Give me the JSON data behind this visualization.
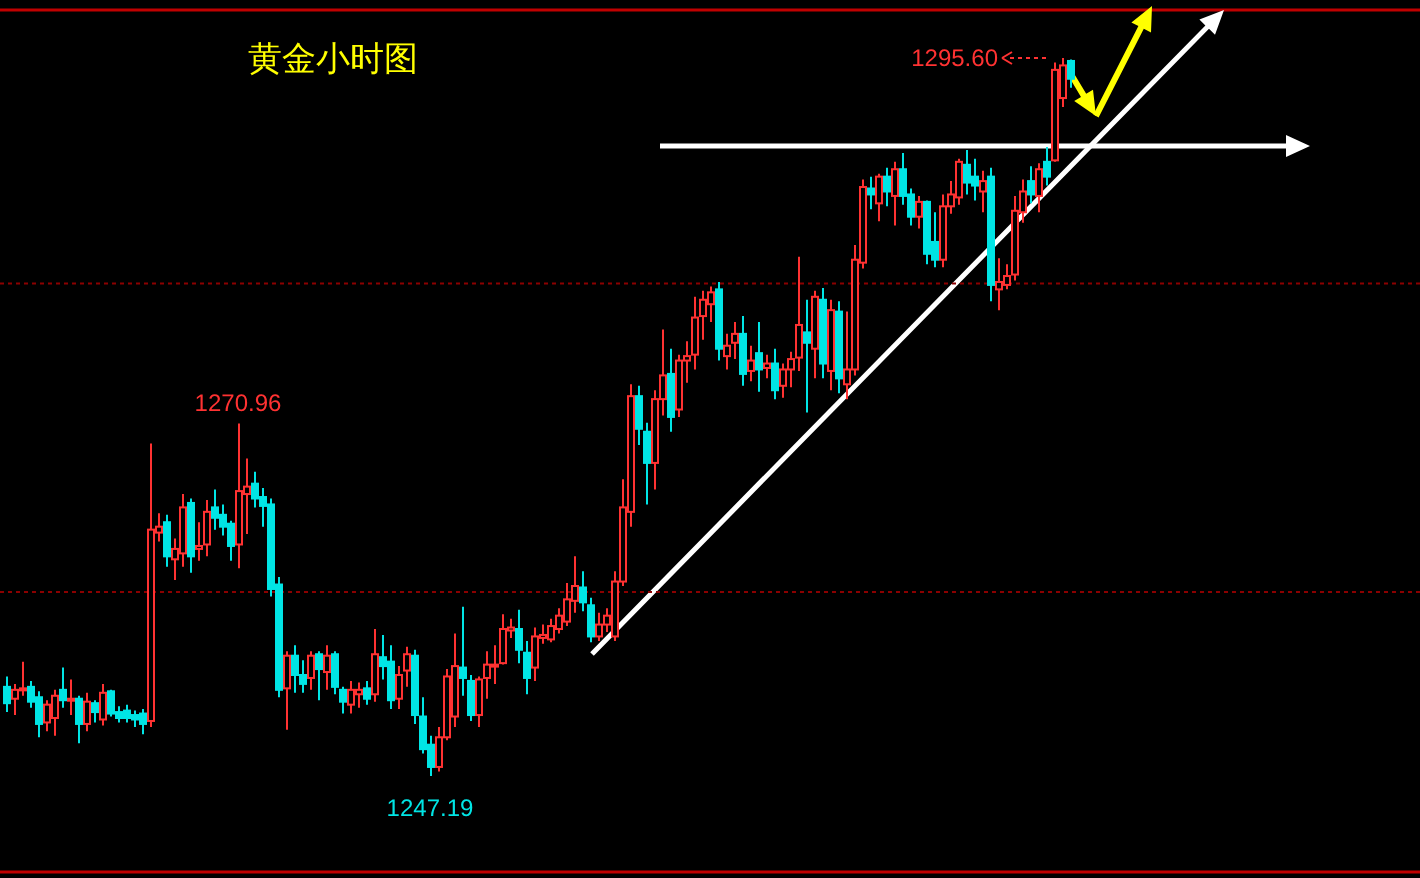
{
  "chart_data": {
    "type": "candlestick",
    "title": "黄金小时图",
    "categories": [
      null,
      null,
      null,
      null,
      null,
      null,
      null,
      null,
      null,
      null,
      null,
      null,
      null,
      null,
      null,
      null,
      null,
      null,
      null,
      null,
      null,
      null,
      null,
      null,
      null,
      null,
      null,
      null,
      null,
      null,
      null,
      null,
      null,
      null,
      null,
      null,
      null,
      null,
      null,
      null,
      null,
      null,
      null,
      null,
      null,
      null,
      null,
      null,
      null,
      null,
      null,
      null,
      null,
      null,
      null,
      null,
      null,
      null,
      null,
      null,
      null,
      null,
      null,
      null,
      null,
      null,
      null,
      null,
      null,
      null,
      null,
      null,
      null,
      null,
      null,
      null,
      null,
      null,
      null,
      null,
      null,
      null,
      null,
      null,
      null,
      null,
      null,
      null,
      null,
      null,
      null,
      null,
      null,
      null,
      null,
      null,
      null,
      null,
      null,
      null,
      null,
      null,
      null,
      null,
      null,
      null,
      null,
      null,
      null,
      null,
      null,
      null,
      null,
      null,
      null,
      null,
      null,
      null,
      null,
      null,
      null,
      null,
      null,
      null,
      null,
      null,
      null,
      null,
      null,
      null,
      null,
      null,
      null,
      null
    ],
    "colors": [
      "#00e5e5",
      "#ff3232",
      "#ff3232",
      "#00e5e5",
      "#00e5e5",
      "#ff3232",
      "#ff3232",
      "#00e5e5",
      "#ff3232",
      "#00e5e5",
      "#ff3232",
      "#00e5e5",
      "#ff3232",
      "#00e5e5",
      "#00e5e5",
      "#00e5e5",
      "#00e5e5",
      "#00e5e5",
      "#ff3232",
      "#ff3232",
      "#00e5e5",
      "#ff3232",
      "#ff3232",
      "#00e5e5",
      "#ff3232",
      "#ff3232",
      "#00e5e5",
      "#00e5e5",
      "#00e5e5",
      "#ff3232",
      "#ff3232",
      "#00e5e5",
      "#00e5e5",
      "#00e5e5",
      "#00e5e5",
      "#ff3232",
      "#00e5e5",
      "#00e5e5",
      "#ff3232",
      "#00e5e5",
      "#ff3232",
      "#00e5e5",
      "#00e5e5",
      "#ff3232",
      "#ff3232",
      "#00e5e5",
      "#ff3232",
      "#00e5e5",
      "#00e5e5",
      "#ff3232",
      "#ff3232",
      "#00e5e5",
      "#00e5e5",
      "#00e5e5",
      "#ff3232",
      "#ff3232",
      "#ff3232",
      "#00e5e5",
      "#00e5e5",
      "#ff3232",
      "#ff3232",
      "#ff3232",
      "#ff3232",
      "#ff3232",
      "#00e5e5",
      "#00e5e5",
      "#ff3232",
      "#ff3232",
      "#ff3232",
      "#ff3232",
      "#ff3232",
      "#ff3232",
      "#00e5e5",
      "#00e5e5",
      "#ff3232",
      "#ff3232",
      "#ff3232",
      "#ff3232",
      "#ff3232",
      "#00e5e5",
      "#00e5e5",
      "#ff3232",
      "#ff3232",
      "#00e5e5",
      "#ff3232",
      "#ff3232",
      "#ff3232",
      "#ff3232",
      "#ff3232",
      "#00e5e5",
      "#ff3232",
      "#ff3232",
      "#00e5e5",
      "#ff3232",
      "#00e5e5",
      "#ff3232",
      "#00e5e5",
      "#ff3232",
      "#ff3232",
      "#ff3232",
      "#00e5e5",
      "#ff3232",
      "#00e5e5",
      "#ff3232",
      "#00e5e5",
      "#ff3232",
      "#ff3232",
      "#ff3232",
      "#00e5e5",
      "#ff3232",
      "#00e5e5",
      "#ff3232",
      "#00e5e5",
      "#00e5e5",
      "#ff3232",
      "#00e5e5",
      "#00e5e5",
      "#ff3232",
      "#ff3232",
      "#ff3232",
      "#00e5e5",
      "#00e5e5",
      "#ff3232",
      "#00e5e5",
      "#ff3232",
      "#ff3232",
      "#ff3232",
      "#ff3232",
      "#00e5e5",
      "#ff3232",
      "#00e5e5",
      "#ff3232",
      "#ff3232",
      "#00e5e5"
    ],
    "ohlc": [
      [
        1253.2,
        1253.9,
        1251.5,
        1252.1
      ],
      [
        1252.4,
        1253.4,
        1251.3,
        1253.0
      ],
      [
        1253.0,
        1254.9,
        1252.6,
        1253.1
      ],
      [
        1253.2,
        1253.6,
        1251.8,
        1252.2
      ],
      [
        1252.5,
        1252.9,
        1249.8,
        1250.7
      ],
      [
        1250.8,
        1252.3,
        1250.2,
        1252.0
      ],
      [
        1251.1,
        1253.0,
        1249.9,
        1252.6
      ],
      [
        1253.0,
        1254.5,
        1251.8,
        1252.3
      ],
      [
        1252.4,
        1253.7,
        1251.3,
        1252.4
      ],
      [
        1252.4,
        1252.6,
        1249.4,
        1250.7
      ],
      [
        1250.7,
        1252.8,
        1250.2,
        1252.2
      ],
      [
        1252.1,
        1252.3,
        1250.8,
        1251.5
      ],
      [
        1251.0,
        1253.4,
        1250.6,
        1252.8
      ],
      [
        1252.9,
        1253.0,
        1251.2,
        1251.4
      ],
      [
        1251.5,
        1251.9,
        1250.8,
        1251.1
      ],
      [
        1251.6,
        1252.0,
        1250.8,
        1251.1
      ],
      [
        1251.3,
        1251.6,
        1250.5,
        1251.0
      ],
      [
        1251.4,
        1251.7,
        1250.0,
        1250.7
      ],
      [
        1250.9,
        1269.6,
        1250.5,
        1263.8
      ],
      [
        1263.6,
        1264.9,
        1263.0,
        1264.0
      ],
      [
        1264.3,
        1264.8,
        1261.3,
        1262.0
      ],
      [
        1261.8,
        1263.2,
        1260.4,
        1262.5
      ],
      [
        1262.2,
        1266.2,
        1261.3,
        1265.3
      ],
      [
        1265.6,
        1265.9,
        1260.9,
        1262.0
      ],
      [
        1262.5,
        1264.3,
        1261.7,
        1262.7
      ],
      [
        1262.8,
        1265.8,
        1262.0,
        1265.0
      ],
      [
        1265.3,
        1266.5,
        1263.8,
        1264.6
      ],
      [
        1264.8,
        1265.5,
        1263.4,
        1264.0
      ],
      [
        1264.2,
        1264.4,
        1261.7,
        1262.7
      ],
      [
        1262.8,
        1270.96,
        1261.2,
        1266.4
      ],
      [
        1266.2,
        1268.6,
        1263.5,
        1266.7
      ],
      [
        1266.9,
        1267.7,
        1265.3,
        1265.9
      ],
      [
        1266.0,
        1266.6,
        1264.0,
        1265.4
      ],
      [
        1265.5,
        1265.9,
        1259.3,
        1259.8
      ],
      [
        1260.1,
        1260.6,
        1252.5,
        1253.0
      ],
      [
        1253.1,
        1255.6,
        1250.3,
        1255.3
      ],
      [
        1255.3,
        1256.0,
        1252.8,
        1254.0
      ],
      [
        1254.0,
        1255.0,
        1252.8,
        1253.4
      ],
      [
        1253.8,
        1255.6,
        1253.0,
        1255.3
      ],
      [
        1255.4,
        1255.6,
        1252.3,
        1254.4
      ],
      [
        1254.2,
        1256.0,
        1253.0,
        1255.3
      ],
      [
        1255.4,
        1255.6,
        1252.7,
        1253.2
      ],
      [
        1253.0,
        1253.2,
        1251.4,
        1252.2
      ],
      [
        1252.0,
        1253.6,
        1251.4,
        1253.0
      ],
      [
        1252.7,
        1253.5,
        1251.8,
        1253.0
      ],
      [
        1253.1,
        1253.6,
        1252.0,
        1252.4
      ],
      [
        1252.7,
        1257.1,
        1252.2,
        1255.4
      ],
      [
        1255.2,
        1256.7,
        1253.7,
        1254.6
      ],
      [
        1254.9,
        1256.0,
        1251.7,
        1252.3
      ],
      [
        1252.4,
        1254.6,
        1251.7,
        1254.0
      ],
      [
        1254.3,
        1255.9,
        1253.2,
        1255.4
      ],
      [
        1255.3,
        1255.7,
        1250.7,
        1251.3
      ],
      [
        1251.2,
        1252.5,
        1248.7,
        1249.0
      ],
      [
        1249.3,
        1249.9,
        1247.19,
        1247.8
      ],
      [
        1247.8,
        1250.5,
        1247.5,
        1249.8
      ],
      [
        1249.8,
        1254.4,
        1249.6,
        1253.9
      ],
      [
        1251.2,
        1256.8,
        1250.5,
        1254.6
      ],
      [
        1254.5,
        1258.6,
        1252.6,
        1253.8
      ],
      [
        1253.6,
        1254.0,
        1250.9,
        1251.3
      ],
      [
        1251.3,
        1253.9,
        1250.5,
        1253.7
      ],
      [
        1253.8,
        1255.6,
        1252.4,
        1254.7
      ],
      [
        1254.7,
        1256.0,
        1253.4,
        1254.7
      ],
      [
        1254.8,
        1258.1,
        1254.7,
        1257.1
      ],
      [
        1257.0,
        1257.8,
        1256.5,
        1257.2
      ],
      [
        1257.1,
        1258.4,
        1254.8,
        1255.7
      ],
      [
        1255.5,
        1256.3,
        1252.7,
        1253.8
      ],
      [
        1254.5,
        1257.2,
        1253.6,
        1256.6
      ],
      [
        1256.5,
        1257.4,
        1256.1,
        1256.7
      ],
      [
        1256.4,
        1257.8,
        1256.2,
        1257.3
      ],
      [
        1257.1,
        1258.5,
        1256.8,
        1258.0
      ],
      [
        1257.6,
        1260.2,
        1257.3,
        1259.1
      ],
      [
        1259.0,
        1262.0,
        1258.2,
        1260.0
      ],
      [
        1259.9,
        1261.0,
        1258.3,
        1258.9
      ],
      [
        1258.7,
        1259.2,
        1256.2,
        1256.6
      ],
      [
        1256.6,
        1258.2,
        1256.3,
        1257.4
      ],
      [
        1257.4,
        1258.5,
        1256.9,
        1258.0
      ],
      [
        1256.6,
        1261.0,
        1256.3,
        1260.3
      ],
      [
        1260.3,
        1267.2,
        1260.0,
        1265.3
      ],
      [
        1265.0,
        1273.6,
        1264.0,
        1272.8
      ],
      [
        1272.8,
        1273.5,
        1269.5,
        1270.6
      ],
      [
        1270.4,
        1271.0,
        1265.5,
        1268.3
      ],
      [
        1268.3,
        1273.2,
        1266.5,
        1272.6
      ],
      [
        1272.6,
        1277.3,
        1271.5,
        1274.2
      ],
      [
        1274.3,
        1276.0,
        1270.4,
        1271.4
      ],
      [
        1271.9,
        1275.6,
        1271.4,
        1275.2
      ],
      [
        1275.2,
        1276.5,
        1273.7,
        1275.5
      ],
      [
        1275.6,
        1279.5,
        1274.6,
        1278.1
      ],
      [
        1278.2,
        1279.9,
        1276.6,
        1279.3
      ],
      [
        1279.0,
        1280.2,
        1277.8,
        1279.8
      ],
      [
        1280.0,
        1280.5,
        1275.2,
        1276.0
      ],
      [
        1275.5,
        1277.0,
        1274.6,
        1276.2
      ],
      [
        1276.4,
        1277.8,
        1275.3,
        1277.0
      ],
      [
        1277.0,
        1278.2,
        1273.5,
        1274.3
      ],
      [
        1274.5,
        1276.2,
        1273.8,
        1275.2
      ],
      [
        1275.7,
        1277.8,
        1273.1,
        1274.6
      ],
      [
        1274.7,
        1275.6,
        1274.0,
        1275.0
      ],
      [
        1275.0,
        1276.0,
        1272.6,
        1273.2
      ],
      [
        1273.5,
        1275.0,
        1272.7,
        1274.6
      ],
      [
        1274.6,
        1275.8,
        1273.4,
        1275.3
      ],
      [
        1275.4,
        1282.2,
        1274.5,
        1277.6
      ],
      [
        1277.1,
        1279.3,
        1271.7,
        1276.4
      ],
      [
        1276.0,
        1279.9,
        1274.0,
        1279.5
      ],
      [
        1279.3,
        1280.1,
        1274.0,
        1275.0
      ],
      [
        1274.5,
        1279.3,
        1273.2,
        1278.6
      ],
      [
        1278.5,
        1279.2,
        1273.0,
        1274.0
      ],
      [
        1273.6,
        1278.5,
        1272.6,
        1274.6
      ],
      [
        1274.6,
        1283.0,
        1274.2,
        1282.0
      ],
      [
        1281.8,
        1287.4,
        1281.4,
        1286.9
      ],
      [
        1286.8,
        1287.6,
        1285.4,
        1286.4
      ],
      [
        1285.8,
        1287.8,
        1284.6,
        1287.6
      ],
      [
        1287.6,
        1288.2,
        1285.6,
        1286.6
      ],
      [
        1286.3,
        1288.6,
        1284.3,
        1288.1
      ],
      [
        1288.1,
        1289.2,
        1285.7,
        1286.3
      ],
      [
        1286.4,
        1286.8,
        1284.3,
        1284.9
      ],
      [
        1284.9,
        1286.3,
        1284.1,
        1285.9
      ],
      [
        1285.9,
        1286.0,
        1281.7,
        1282.4
      ],
      [
        1283.2,
        1285.2,
        1281.5,
        1282.0
      ],
      [
        1282.0,
        1286.4,
        1281.5,
        1285.6
      ],
      [
        1285.6,
        1287.3,
        1285.1,
        1286.4
      ],
      [
        1286.2,
        1288.8,
        1285.7,
        1288.6
      ],
      [
        1288.4,
        1289.4,
        1286.4,
        1287.2
      ],
      [
        1287.6,
        1288.8,
        1286.0,
        1287.0
      ],
      [
        1286.6,
        1288.0,
        1285.2,
        1287.3
      ],
      [
        1287.6,
        1288.2,
        1279.2,
        1280.3
      ],
      [
        1280.0,
        1282.1,
        1278.6,
        1280.5
      ],
      [
        1280.3,
        1281.7,
        1280.0,
        1280.9
      ],
      [
        1281.0,
        1286.3,
        1280.6,
        1285.3
      ],
      [
        1285.2,
        1287.4,
        1284.5,
        1286.6
      ],
      [
        1287.3,
        1288.3,
        1285.8,
        1286.4
      ],
      [
        1286.3,
        1288.5,
        1285.2,
        1288.1
      ],
      [
        1288.6,
        1289.6,
        1287.0,
        1287.6
      ],
      [
        1288.7,
        1295.3,
        1288.6,
        1294.8
      ],
      [
        1292.9,
        1295.6,
        1292.3,
        1295.1
      ],
      [
        1295.4,
        1295.5,
        1293.6,
        1294.2
      ]
    ],
    "annotations": [
      "1295.60",
      {
        "text": "1270.96",
        "y": 1270.96
      },
      {
        "text": "1247.19",
        "y": 1247.19
      }
    ],
    "ref_lines": [
      {
        "axis": "y",
        "value": 1280.4,
        "color": "#8b0000",
        "line_style": "dotted"
      },
      {
        "axis": "y",
        "value": 1259.6,
        "color": "#8b0000",
        "line_style": "dotted"
      }
    ]
  }
}
